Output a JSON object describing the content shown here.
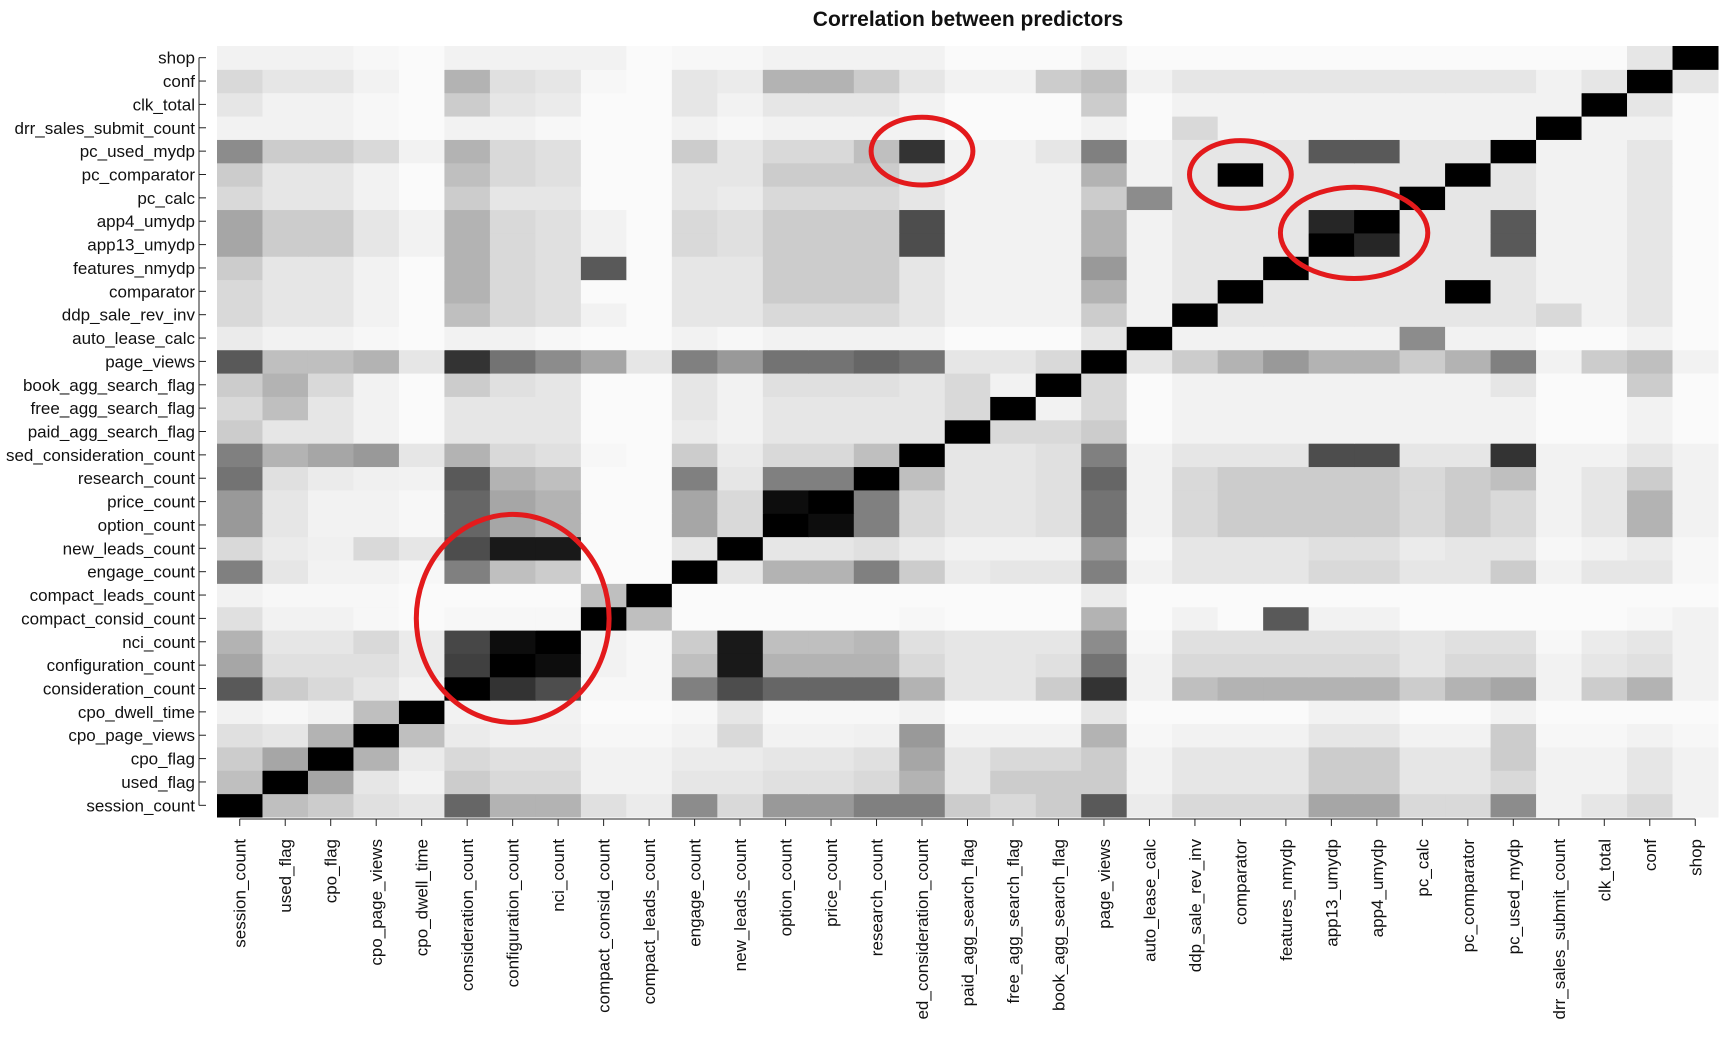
{
  "chart_data": {
    "type": "heatmap",
    "title": "Correlation between predictors",
    "subtitle": "",
    "xlabel": "",
    "ylabel": "",
    "grid": false,
    "legend": "none",
    "colormap": {
      "low": "#ffffff",
      "high": "#000000",
      "measure": "absolute correlation, 0 to 1"
    },
    "annotation_color": "#e31a1c",
    "categories": [
      "session_count",
      "used_flag",
      "cpo_flag",
      "cpo_page_views",
      "cpo_dwell_time",
      "consideration_count",
      "configuration_count",
      "nci_count",
      "compact_consid_count",
      "compact_leads_count",
      "engage_count",
      "new_leads_count",
      "option_count",
      "price_count",
      "research_count",
      "used_consideration_count",
      "paid_agg_search_flag",
      "free_agg_search_flag",
      "book_agg_search_flag",
      "page_views",
      "auto_lease_calc",
      "ddp_sale_rev_inv",
      "comparator",
      "features_nmydp",
      "app13_umydp",
      "app4_umydp",
      "pc_calc",
      "pc_comparator",
      "pc_used_mydp",
      "drr_sales_submit_count",
      "clk_total",
      "conf",
      "shop"
    ],
    "x_tick_labels": [
      "session_count",
      "used_flag",
      "cpo_flag",
      "cpo_page_views",
      "cpo_dwell_time",
      "consideration_count",
      "configuration_count",
      "nci_count",
      "compact_consid_count",
      "compact_leads_count",
      "engage_count",
      "new_leads_count",
      "option_count",
      "price_count",
      "research_count",
      "ed_consideration_count",
      "paid_agg_search_flag",
      "free_agg_search_flag",
      "book_agg_search_flag",
      "page_views",
      "auto_lease_calc",
      "ddp_sale_rev_inv",
      "comparator",
      "features_nmydp",
      "app13_umydp",
      "app4_umydp",
      "pc_calc",
      "pc_comparator",
      "pc_used_mydp",
      "drr_sales_submit_count",
      "clk_total",
      "conf",
      "shop"
    ],
    "y_tick_labels": [
      "session_count",
      "used_flag",
      "cpo_flag",
      "cpo_page_views",
      "cpo_dwell_time",
      "consideration_count",
      "configuration_count",
      "nci_count",
      "compact_consid_count",
      "compact_leads_count",
      "engage_count",
      "new_leads_count",
      "option_count",
      "price_count",
      "research_count",
      "sed_consideration_count",
      "paid_agg_search_flag",
      "free_agg_search_flag",
      "book_agg_search_flag",
      "page_views",
      "auto_lease_calc",
      "ddp_sale_rev_inv",
      "comparator",
      "features_nmydp",
      "app13_umydp",
      "app4_umydp",
      "pc_calc",
      "pc_comparator",
      "pc_used_mydp",
      "drr_sales_submit_count",
      "clk_total",
      "conf",
      "shop"
    ],
    "values": [
      [
        1.0,
        0.25,
        0.2,
        0.12,
        0.1,
        0.6,
        0.3,
        0.3,
        0.12,
        0.08,
        0.45,
        0.15,
        0.4,
        0.4,
        0.5,
        0.5,
        0.2,
        0.15,
        0.2,
        0.65,
        0.08,
        0.15,
        0.15,
        0.15,
        0.35,
        0.35,
        0.15,
        0.15,
        0.45,
        0.05,
        0.1,
        0.15,
        0.05
      ],
      [
        0.25,
        1.0,
        0.35,
        0.1,
        0.05,
        0.2,
        0.15,
        0.15,
        0.05,
        0.05,
        0.1,
        0.1,
        0.12,
        0.12,
        0.15,
        0.3,
        0.1,
        0.2,
        0.2,
        0.2,
        0.05,
        0.1,
        0.1,
        0.1,
        0.2,
        0.2,
        0.1,
        0.1,
        0.15,
        0.05,
        0.05,
        0.1,
        0.05
      ],
      [
        0.2,
        0.35,
        1.0,
        0.3,
        0.08,
        0.15,
        0.12,
        0.12,
        0.05,
        0.05,
        0.08,
        0.08,
        0.1,
        0.1,
        0.12,
        0.35,
        0.1,
        0.15,
        0.15,
        0.2,
        0.05,
        0.1,
        0.1,
        0.1,
        0.2,
        0.2,
        0.1,
        0.1,
        0.2,
        0.05,
        0.05,
        0.1,
        0.05
      ],
      [
        0.12,
        0.1,
        0.3,
        1.0,
        0.25,
        0.08,
        0.06,
        0.06,
        0.03,
        0.03,
        0.05,
        0.15,
        0.05,
        0.05,
        0.06,
        0.4,
        0.05,
        0.05,
        0.05,
        0.3,
        0.03,
        0.05,
        0.05,
        0.05,
        0.1,
        0.1,
        0.05,
        0.05,
        0.2,
        0.03,
        0.03,
        0.05,
        0.03
      ],
      [
        0.05,
        0.03,
        0.05,
        0.25,
        1.0,
        0.05,
        0.05,
        0.05,
        0.02,
        0.02,
        0.03,
        0.1,
        0.03,
        0.03,
        0.03,
        0.05,
        0.02,
        0.02,
        0.02,
        0.1,
        0.02,
        0.02,
        0.02,
        0.02,
        0.05,
        0.05,
        0.02,
        0.02,
        0.05,
        0.02,
        0.02,
        0.02,
        0.02
      ],
      [
        0.65,
        0.2,
        0.15,
        0.1,
        0.05,
        1.0,
        0.8,
        0.7,
        0.03,
        0.03,
        0.5,
        0.7,
        0.6,
        0.6,
        0.6,
        0.3,
        0.1,
        0.1,
        0.2,
        0.8,
        0.05,
        0.25,
        0.3,
        0.3,
        0.3,
        0.3,
        0.2,
        0.3,
        0.35,
        0.05,
        0.2,
        0.3,
        0.05
      ],
      [
        0.35,
        0.12,
        0.12,
        0.12,
        0.08,
        0.75,
        1.0,
        0.95,
        0.05,
        0.03,
        0.25,
        0.9,
        0.3,
        0.3,
        0.3,
        0.15,
        0.1,
        0.1,
        0.12,
        0.55,
        0.05,
        0.15,
        0.15,
        0.15,
        0.15,
        0.15,
        0.1,
        0.15,
        0.15,
        0.05,
        0.1,
        0.12,
        0.05
      ],
      [
        0.3,
        0.1,
        0.1,
        0.15,
        0.08,
        0.72,
        0.95,
        1.0,
        0.05,
        0.03,
        0.2,
        0.9,
        0.25,
        0.25,
        0.28,
        0.12,
        0.1,
        0.1,
        0.1,
        0.45,
        0.03,
        0.12,
        0.12,
        0.12,
        0.12,
        0.12,
        0.1,
        0.12,
        0.12,
        0.03,
        0.08,
        0.1,
        0.05
      ],
      [
        0.12,
        0.05,
        0.05,
        0.03,
        0.02,
        0.03,
        0.03,
        0.03,
        1.0,
        0.25,
        0.02,
        0.02,
        0.02,
        0.02,
        0.02,
        0.03,
        0.02,
        0.02,
        0.02,
        0.3,
        0.02,
        0.05,
        0.02,
        0.65,
        0.05,
        0.05,
        0.02,
        0.02,
        0.02,
        0.02,
        0.02,
        0.03,
        0.05
      ],
      [
        0.05,
        0.03,
        0.03,
        0.03,
        0.02,
        0.02,
        0.02,
        0.02,
        0.25,
        1.0,
        0.02,
        0.02,
        0.02,
        0.02,
        0.02,
        0.02,
        0.02,
        0.02,
        0.02,
        0.08,
        0.02,
        0.02,
        0.02,
        0.02,
        0.02,
        0.02,
        0.02,
        0.02,
        0.02,
        0.02,
        0.02,
        0.02,
        0.02
      ],
      [
        0.5,
        0.1,
        0.05,
        0.05,
        0.03,
        0.5,
        0.25,
        0.2,
        0.02,
        0.02,
        1.0,
        0.1,
        0.3,
        0.3,
        0.5,
        0.2,
        0.08,
        0.1,
        0.1,
        0.5,
        0.05,
        0.1,
        0.1,
        0.1,
        0.15,
        0.15,
        0.1,
        0.1,
        0.2,
        0.05,
        0.1,
        0.1,
        0.03
      ],
      [
        0.15,
        0.08,
        0.06,
        0.15,
        0.1,
        0.7,
        0.9,
        0.9,
        0.02,
        0.02,
        0.1,
        1.0,
        0.1,
        0.1,
        0.12,
        0.08,
        0.05,
        0.05,
        0.05,
        0.4,
        0.03,
        0.1,
        0.1,
        0.1,
        0.12,
        0.12,
        0.08,
        0.1,
        0.1,
        0.03,
        0.05,
        0.08,
        0.03
      ],
      [
        0.4,
        0.1,
        0.05,
        0.05,
        0.03,
        0.6,
        0.35,
        0.3,
        0.02,
        0.02,
        0.35,
        0.15,
        1.0,
        0.95,
        0.5,
        0.15,
        0.1,
        0.1,
        0.12,
        0.55,
        0.05,
        0.15,
        0.2,
        0.2,
        0.2,
        0.2,
        0.15,
        0.2,
        0.15,
        0.05,
        0.1,
        0.3,
        0.05
      ],
      [
        0.4,
        0.1,
        0.05,
        0.05,
        0.03,
        0.6,
        0.35,
        0.3,
        0.02,
        0.02,
        0.35,
        0.15,
        0.95,
        1.0,
        0.5,
        0.15,
        0.1,
        0.1,
        0.12,
        0.55,
        0.05,
        0.15,
        0.2,
        0.2,
        0.2,
        0.2,
        0.15,
        0.2,
        0.15,
        0.05,
        0.1,
        0.3,
        0.05
      ],
      [
        0.55,
        0.12,
        0.08,
        0.06,
        0.05,
        0.65,
        0.3,
        0.25,
        0.02,
        0.02,
        0.5,
        0.1,
        0.5,
        0.5,
        1.0,
        0.25,
        0.1,
        0.1,
        0.12,
        0.6,
        0.05,
        0.15,
        0.2,
        0.2,
        0.2,
        0.2,
        0.15,
        0.2,
        0.25,
        0.05,
        0.1,
        0.2,
        0.05
      ],
      [
        0.5,
        0.3,
        0.35,
        0.4,
        0.1,
        0.3,
        0.15,
        0.12,
        0.03,
        0.02,
        0.2,
        0.08,
        0.15,
        0.15,
        0.25,
        1.0,
        0.1,
        0.1,
        0.12,
        0.5,
        0.05,
        0.1,
        0.1,
        0.1,
        0.7,
        0.7,
        0.1,
        0.1,
        0.8,
        0.05,
        0.05,
        0.1,
        0.05
      ],
      [
        0.2,
        0.1,
        0.1,
        0.05,
        0.02,
        0.1,
        0.1,
        0.1,
        0.02,
        0.02,
        0.08,
        0.05,
        0.1,
        0.1,
        0.1,
        0.1,
        1.0,
        0.15,
        0.15,
        0.2,
        0.02,
        0.05,
        0.05,
        0.05,
        0.05,
        0.05,
        0.05,
        0.05,
        0.05,
        0.02,
        0.02,
        0.05,
        0.02
      ],
      [
        0.15,
        0.25,
        0.1,
        0.05,
        0.02,
        0.1,
        0.1,
        0.1,
        0.02,
        0.02,
        0.1,
        0.05,
        0.1,
        0.1,
        0.1,
        0.1,
        0.15,
        1.0,
        0.05,
        0.15,
        0.02,
        0.05,
        0.05,
        0.05,
        0.05,
        0.05,
        0.05,
        0.05,
        0.05,
        0.02,
        0.02,
        0.05,
        0.02
      ],
      [
        0.2,
        0.3,
        0.15,
        0.05,
        0.02,
        0.2,
        0.12,
        0.1,
        0.02,
        0.02,
        0.1,
        0.05,
        0.12,
        0.12,
        0.12,
        0.1,
        0.15,
        0.05,
        1.0,
        0.15,
        0.02,
        0.05,
        0.05,
        0.05,
        0.05,
        0.05,
        0.05,
        0.05,
        0.1,
        0.02,
        0.02,
        0.2,
        0.02
      ],
      [
        0.65,
        0.25,
        0.25,
        0.3,
        0.1,
        0.8,
        0.55,
        0.45,
        0.35,
        0.1,
        0.5,
        0.4,
        0.55,
        0.55,
        0.6,
        0.55,
        0.1,
        0.1,
        0.15,
        1.0,
        0.1,
        0.2,
        0.3,
        0.4,
        0.3,
        0.3,
        0.2,
        0.3,
        0.5,
        0.05,
        0.2,
        0.25,
        0.05
      ],
      [
        0.08,
        0.05,
        0.05,
        0.03,
        0.02,
        0.05,
        0.05,
        0.03,
        0.02,
        0.02,
        0.05,
        0.03,
        0.05,
        0.05,
        0.05,
        0.05,
        0.02,
        0.02,
        0.02,
        0.1,
        1.0,
        0.05,
        0.05,
        0.05,
        0.05,
        0.05,
        0.45,
        0.05,
        0.05,
        0.02,
        0.02,
        0.05,
        0.02
      ],
      [
        0.15,
        0.1,
        0.1,
        0.05,
        0.02,
        0.25,
        0.15,
        0.12,
        0.05,
        0.02,
        0.1,
        0.1,
        0.15,
        0.15,
        0.15,
        0.1,
        0.05,
        0.05,
        0.05,
        0.2,
        0.05,
        1.0,
        0.1,
        0.1,
        0.1,
        0.1,
        0.1,
        0.1,
        0.1,
        0.15,
        0.05,
        0.1,
        0.02
      ],
      [
        0.15,
        0.1,
        0.1,
        0.05,
        0.02,
        0.3,
        0.15,
        0.12,
        0.02,
        0.02,
        0.1,
        0.1,
        0.2,
        0.2,
        0.2,
        0.1,
        0.05,
        0.05,
        0.05,
        0.3,
        0.05,
        0.1,
        1.0,
        0.1,
        0.1,
        0.1,
        0.1,
        1.0,
        0.1,
        0.05,
        0.05,
        0.1,
        0.02
      ],
      [
        0.2,
        0.1,
        0.1,
        0.05,
        0.02,
        0.3,
        0.15,
        0.12,
        0.65,
        0.02,
        0.1,
        0.1,
        0.2,
        0.2,
        0.2,
        0.1,
        0.05,
        0.05,
        0.05,
        0.4,
        0.05,
        0.1,
        0.1,
        1.0,
        0.1,
        0.1,
        0.1,
        0.1,
        0.1,
        0.05,
        0.05,
        0.1,
        0.02
      ],
      [
        0.35,
        0.2,
        0.2,
        0.1,
        0.05,
        0.3,
        0.15,
        0.12,
        0.05,
        0.02,
        0.15,
        0.12,
        0.2,
        0.2,
        0.2,
        0.7,
        0.05,
        0.05,
        0.05,
        0.3,
        0.05,
        0.1,
        0.1,
        0.1,
        1.0,
        0.85,
        0.1,
        0.1,
        0.65,
        0.05,
        0.05,
        0.1,
        0.02
      ],
      [
        0.35,
        0.2,
        0.2,
        0.1,
        0.05,
        0.3,
        0.15,
        0.12,
        0.05,
        0.02,
        0.15,
        0.12,
        0.2,
        0.2,
        0.2,
        0.7,
        0.05,
        0.05,
        0.05,
        0.3,
        0.05,
        0.1,
        0.1,
        0.1,
        0.85,
        1.0,
        0.1,
        0.1,
        0.65,
        0.05,
        0.05,
        0.1,
        0.02
      ],
      [
        0.15,
        0.1,
        0.1,
        0.05,
        0.02,
        0.2,
        0.1,
        0.1,
        0.02,
        0.02,
        0.1,
        0.08,
        0.15,
        0.15,
        0.15,
        0.1,
        0.05,
        0.05,
        0.05,
        0.2,
        0.45,
        0.1,
        0.1,
        0.1,
        0.1,
        0.1,
        1.0,
        0.1,
        0.1,
        0.05,
        0.05,
        0.1,
        0.02
      ],
      [
        0.2,
        0.1,
        0.1,
        0.05,
        0.02,
        0.25,
        0.15,
        0.12,
        0.02,
        0.02,
        0.1,
        0.1,
        0.2,
        0.2,
        0.2,
        0.1,
        0.05,
        0.05,
        0.05,
        0.3,
        0.05,
        0.1,
        1.0,
        0.1,
        0.1,
        0.1,
        0.1,
        1.0,
        0.1,
        0.05,
        0.05,
        0.1,
        0.02
      ],
      [
        0.45,
        0.2,
        0.2,
        0.15,
        0.05,
        0.3,
        0.15,
        0.12,
        0.02,
        0.02,
        0.2,
        0.1,
        0.15,
        0.15,
        0.25,
        0.8,
        0.05,
        0.05,
        0.1,
        0.5,
        0.05,
        0.1,
        0.1,
        0.1,
        0.65,
        0.65,
        0.1,
        0.1,
        1.0,
        0.05,
        0.05,
        0.1,
        0.02
      ],
      [
        0.05,
        0.05,
        0.05,
        0.03,
        0.02,
        0.05,
        0.05,
        0.03,
        0.02,
        0.02,
        0.05,
        0.03,
        0.05,
        0.05,
        0.05,
        0.05,
        0.02,
        0.02,
        0.02,
        0.05,
        0.02,
        0.15,
        0.05,
        0.05,
        0.05,
        0.05,
        0.05,
        0.05,
        0.05,
        1.0,
        0.05,
        0.05,
        0.02
      ],
      [
        0.1,
        0.05,
        0.05,
        0.03,
        0.02,
        0.2,
        0.1,
        0.08,
        0.02,
        0.02,
        0.1,
        0.05,
        0.1,
        0.1,
        0.1,
        0.05,
        0.02,
        0.02,
        0.02,
        0.2,
        0.02,
        0.05,
        0.05,
        0.05,
        0.05,
        0.05,
        0.05,
        0.05,
        0.05,
        0.05,
        1.0,
        0.1,
        0.02
      ],
      [
        0.15,
        0.1,
        0.1,
        0.05,
        0.02,
        0.3,
        0.12,
        0.1,
        0.03,
        0.02,
        0.1,
        0.08,
        0.3,
        0.3,
        0.2,
        0.1,
        0.05,
        0.05,
        0.2,
        0.25,
        0.05,
        0.1,
        0.1,
        0.1,
        0.1,
        0.1,
        0.1,
        0.1,
        0.1,
        0.05,
        0.1,
        1.0,
        0.1
      ],
      [
        0.05,
        0.05,
        0.05,
        0.03,
        0.02,
        0.05,
        0.05,
        0.05,
        0.05,
        0.02,
        0.03,
        0.03,
        0.05,
        0.05,
        0.05,
        0.05,
        0.02,
        0.02,
        0.02,
        0.05,
        0.02,
        0.02,
        0.02,
        0.02,
        0.02,
        0.02,
        0.02,
        0.02,
        0.02,
        0.02,
        0.02,
        0.1,
        1.0
      ]
    ],
    "annotations": [
      {
        "shape": "ellipse",
        "around": {
          "x": [
            "consideration_count",
            "nci_count"
          ],
          "y": [
            "consideration_count",
            "new_leads_count"
          ]
        }
      },
      {
        "shape": "ellipse",
        "around": {
          "x": [
            "used_consideration_count"
          ],
          "y": [
            "pc_used_mydp"
          ]
        }
      },
      {
        "shape": "ellipse",
        "around": {
          "x": [
            "comparator"
          ],
          "y": [
            "pc_comparator"
          ]
        }
      },
      {
        "shape": "ellipse",
        "around": {
          "x": [
            "app13_umydp",
            "app4_umydp"
          ],
          "y": [
            "app13_umydp",
            "app4_umydp"
          ]
        }
      }
    ]
  }
}
